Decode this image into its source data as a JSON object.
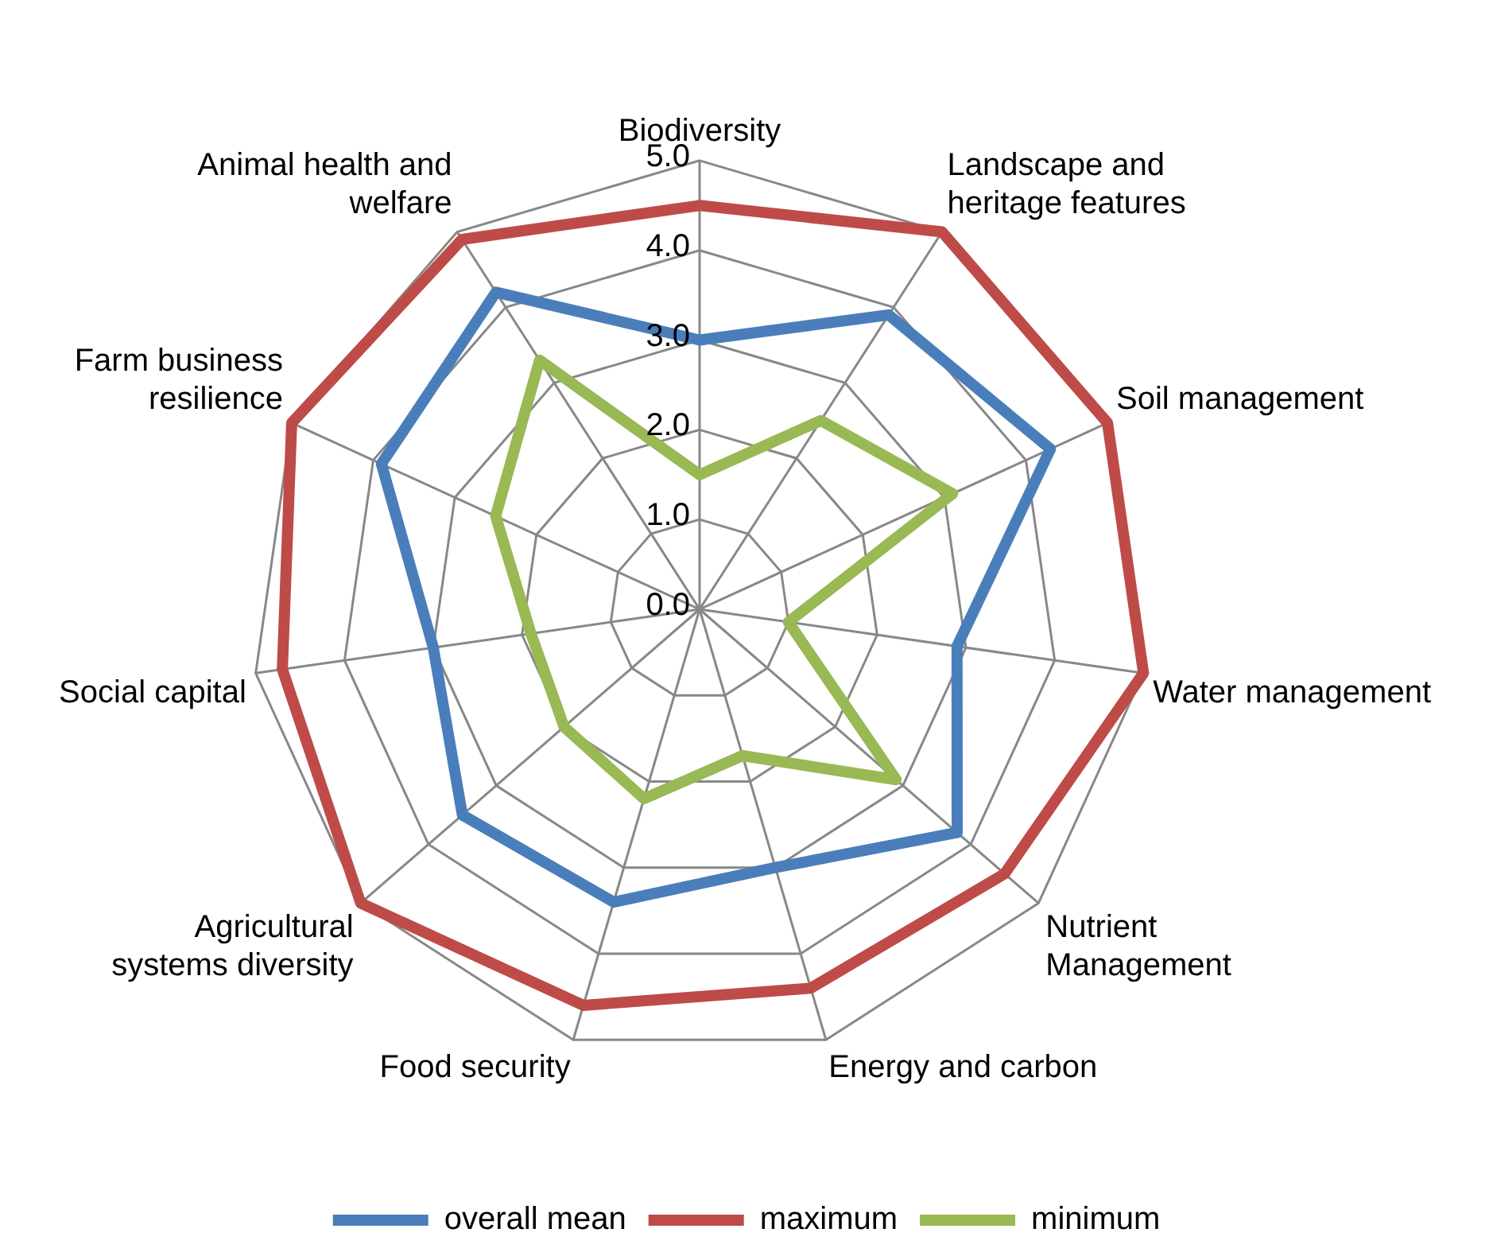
{
  "chart_data": {
    "type": "radar",
    "categories": [
      "Biodiversity",
      "Landscape and heritage features",
      "Soil management",
      "Water management",
      "Nutrient Management",
      "Energy and carbon",
      "Food security",
      "Agricultural systems diversity",
      "Social capital",
      "Farm business resilience",
      "Animal health and welfare"
    ],
    "series": [
      {
        "name": "overall mean",
        "color": "#4a7ebb",
        "values": [
          3.0,
          3.9,
          4.3,
          2.9,
          3.8,
          3.0,
          3.4,
          3.5,
          3.0,
          3.9,
          4.2
        ]
      },
      {
        "name": "maximum",
        "color": "#be4b48",
        "values": [
          4.5,
          5.0,
          5.0,
          5.0,
          4.5,
          4.4,
          4.6,
          5.0,
          4.7,
          5.0,
          4.9
        ]
      },
      {
        "name": "minimum",
        "color": "#98b954",
        "values": [
          1.5,
          2.5,
          3.1,
          1.0,
          2.9,
          1.7,
          2.2,
          2.0,
          1.9,
          2.5,
          3.3
        ]
      }
    ],
    "ylim": [
      0,
      5
    ],
    "yticks": [
      {
        "value": 0,
        "label": "0.0"
      },
      {
        "value": 1,
        "label": "1.0"
      },
      {
        "value": 2,
        "label": "2.0"
      },
      {
        "value": 3,
        "label": "3.0"
      },
      {
        "value": 4,
        "label": "4.0"
      },
      {
        "value": 5,
        "label": "5.0"
      }
    ],
    "grid": true,
    "legend": "bottom",
    "marker": "none"
  }
}
